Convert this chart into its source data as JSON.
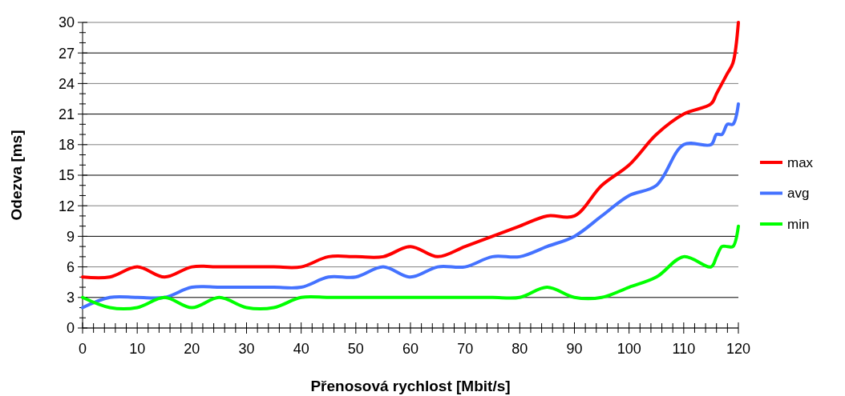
{
  "chart_data": {
    "type": "line",
    "xlabel": "Přenosová rychlost [Mbit/s]",
    "ylabel": "Odezva [ms]",
    "x": [
      0,
      5,
      10,
      15,
      20,
      25,
      30,
      35,
      40,
      45,
      50,
      55,
      60,
      65,
      70,
      75,
      80,
      85,
      90,
      95,
      100,
      105,
      110,
      115,
      116,
      117,
      118,
      119,
      120
    ],
    "series": [
      {
        "name": "max",
        "color": "#ff0000",
        "values": [
          5,
          5,
          6,
          5,
          6,
          6,
          6,
          6,
          6,
          7,
          7,
          7,
          8,
          7,
          8,
          9,
          10,
          11,
          11,
          14,
          16,
          19,
          21,
          22,
          23,
          24,
          25,
          26,
          30
        ]
      },
      {
        "name": "avg",
        "color": "#4472ff",
        "values": [
          2,
          3,
          3,
          3,
          4,
          4,
          4,
          4,
          4,
          5,
          5,
          6,
          5,
          6,
          6,
          7,
          7,
          8,
          9,
          11,
          13,
          14,
          18,
          18,
          19,
          19,
          20,
          20,
          22
        ]
      },
      {
        "name": "min",
        "color": "#00ff00",
        "values": [
          3,
          2,
          2,
          3,
          2,
          3,
          2,
          2,
          3,
          3,
          3,
          3,
          3,
          3,
          3,
          3,
          3,
          4,
          3,
          3,
          4,
          5,
          7,
          6,
          7,
          8,
          8,
          8,
          10
        ]
      }
    ],
    "xlim": [
      0,
      120
    ],
    "ylim": [
      0,
      30
    ],
    "xticks": [
      0,
      {
        "value": 2,
        "label": null
      },
      {
        "value": 4,
        "label": null
      },
      {
        "value": 6,
        "label": null
      },
      {
        "value": 8,
        "label": null
      },
      10,
      {
        "value": 12,
        "label": null
      },
      {
        "value": 14,
        "label": null
      },
      {
        "value": 16,
        "label": null
      },
      {
        "value": 18,
        "label": null
      },
      20,
      {
        "value": 22,
        "label": null
      },
      {
        "value": 24,
        "label": null
      },
      {
        "value": 26,
        "label": null
      },
      {
        "value": 28,
        "label": null
      },
      30,
      {
        "value": 32,
        "label": null
      },
      {
        "value": 34,
        "label": null
      },
      {
        "value": 36,
        "label": null
      },
      {
        "value": 38,
        "label": null
      },
      40,
      {
        "value": 42,
        "label": null
      },
      {
        "value": 44,
        "label": null
      },
      {
        "value": 46,
        "label": null
      },
      {
        "value": 48,
        "label": null
      },
      50,
      {
        "value": 52,
        "label": null
      },
      {
        "value": 54,
        "label": null
      },
      {
        "value": 56,
        "label": null
      },
      {
        "value": 58,
        "label": null
      },
      60,
      {
        "value": 62,
        "label": null
      },
      {
        "value": 64,
        "label": null
      },
      {
        "value": 66,
        "label": null
      },
      {
        "value": 68,
        "label": null
      },
      70,
      {
        "value": 72,
        "label": null
      },
      {
        "value": 74,
        "label": null
      },
      {
        "value": 76,
        "label": null
      },
      {
        "value": 78,
        "label": null
      },
      80,
      {
        "value": 82,
        "label": null
      },
      {
        "value": 84,
        "label": null
      },
      {
        "value": 86,
        "label": null
      },
      {
        "value": 88,
        "label": null
      },
      90,
      {
        "value": 92,
        "label": null
      },
      {
        "value": 94,
        "label": null
      },
      {
        "value": 96,
        "label": null
      },
      {
        "value": 98,
        "label": null
      },
      100,
      {
        "value": 102,
        "label": null
      },
      {
        "value": 104,
        "label": null
      },
      {
        "value": 106,
        "label": null
      },
      {
        "value": 108,
        "label": null
      },
      110,
      {
        "value": 112,
        "label": null
      },
      {
        "value": 114,
        "label": null
      },
      {
        "value": 116,
        "label": null
      },
      {
        "value": 118,
        "label": null
      },
      120
    ],
    "yticks": [
      0,
      {
        "value": 1,
        "label": null
      },
      {
        "value": 2,
        "label": null
      },
      3,
      {
        "value": 4,
        "label": null
      },
      {
        "value": 5,
        "label": null
      },
      6,
      {
        "value": 7,
        "label": null
      },
      {
        "value": 8,
        "label": null
      },
      9,
      {
        "value": 10,
        "label": null
      },
      {
        "value": 11,
        "label": null
      },
      12,
      {
        "value": 13,
        "label": null
      },
      {
        "value": 14,
        "label": null
      },
      15,
      {
        "value": 16,
        "label": null
      },
      {
        "value": 17,
        "label": null
      },
      18,
      {
        "value": 19,
        "label": null
      },
      {
        "value": 20,
        "label": null
      },
      21,
      {
        "value": 22,
        "label": null
      },
      {
        "value": 23,
        "label": null
      },
      24,
      {
        "value": 25,
        "label": null
      },
      {
        "value": 26,
        "label": null
      },
      27,
      {
        "value": 28,
        "label": null
      },
      {
        "value": 29,
        "label": null
      },
      30
    ],
    "grid": "y",
    "legend": "right",
    "marker": "none",
    "line_style": "solid"
  }
}
